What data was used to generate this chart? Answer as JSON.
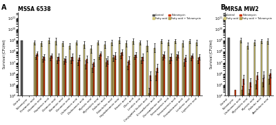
{
  "panel_A_title": "MSSA 6538",
  "panel_B_title": "MRSA MW2",
  "ylabel": "Survival (CFU/ml)",
  "colors": {
    "control": "#555555",
    "tobramycin": "#cc3300",
    "fatty_acid": "#d4c87a",
    "fatty_acid_tobramycin": "#b8a050"
  },
  "panel_A_categories": [
    "Control",
    "Tobramycin",
    "Pentanoic acid",
    "Hexanoic acid",
    "Heptanoic acid",
    "Octanoic acid",
    "Nonanoic acid",
    "Decanoic acid",
    "Undecanoic acid",
    "Dodecanoic acid",
    "Myristic acid",
    "Myristoleic acid",
    "Palmitic acid",
    "Palmitoleic acid",
    "Heptadecanoic acid",
    "Stearic acid",
    "Oleic acid",
    "Linoleic acid",
    "Conjugated linoleic acid",
    "Eicosadienoic acid",
    "Docosadienoic acid",
    "Tetracosanoic acid",
    "Tetracosenoic acid",
    "Pentadecanoic acid",
    "Linolenic acid",
    "Lignoceric acid"
  ],
  "panel_B_categories": [
    "Control",
    "Tobramycin",
    "Undecanoic acid",
    "Myristoleic acid",
    "Myristic acid",
    "Palmitic acid",
    "Arachidonic acid"
  ],
  "panel_A_ctrl_val": [
    9.0,
    3.5,
    null,
    null,
    null,
    null,
    null,
    null,
    null,
    null,
    null,
    null,
    null,
    null,
    null,
    null,
    null,
    null,
    null,
    null,
    null,
    null,
    null,
    null,
    null,
    null
  ],
  "panel_A_fa": [
    null,
    null,
    8.8,
    8.7,
    9.0,
    8.9,
    8.7,
    8.5,
    8.8,
    8.6,
    8.2,
    8.8,
    8.6,
    8.8,
    9.0,
    8.7,
    8.9,
    8.8,
    8.5,
    8.3,
    8.9,
    8.8,
    8.9,
    8.7,
    8.9,
    8.8
  ],
  "panel_A_tob": [
    null,
    null,
    7.8,
    7.5,
    7.6,
    7.5,
    7.3,
    7.5,
    7.4,
    7.3,
    7.0,
    7.8,
    7.2,
    7.6,
    7.9,
    7.2,
    7.7,
    7.5,
    5.8,
    6.5,
    7.7,
    7.5,
    7.7,
    7.4,
    7.6,
    7.5
  ],
  "panel_A_fatob": [
    null,
    null,
    7.5,
    7.3,
    7.4,
    7.2,
    7.1,
    7.2,
    7.0,
    6.8,
    6.5,
    7.5,
    7.0,
    7.4,
    7.6,
    6.7,
    7.5,
    7.2,
    4.2,
    5.8,
    7.5,
    7.2,
    7.5,
    7.0,
    7.4,
    7.2
  ],
  "panel_B_ctrl_val": [
    9.2,
    4.5,
    null,
    null,
    null,
    null,
    null
  ],
  "panel_B_fa": [
    null,
    null,
    9.0,
    8.5,
    8.8,
    8.9,
    8.9
  ],
  "panel_B_tob": [
    null,
    null,
    5.5,
    5.2,
    5.8,
    5.9,
    6.0
  ],
  "panel_B_fatob": [
    null,
    null,
    4.5,
    4.2,
    5.0,
    5.2,
    5.5
  ],
  "panel_A_err_fa": [
    null,
    null,
    0.2,
    0.2,
    0.25,
    0.3,
    0.2,
    0.25,
    0.2,
    0.3,
    0.35,
    0.2,
    0.3,
    0.25,
    0.3,
    0.3,
    0.25,
    0.2,
    0.5,
    0.4,
    0.2,
    0.25,
    0.2,
    0.3,
    0.2,
    0.25
  ],
  "panel_A_err_tob": [
    null,
    null,
    0.2,
    0.25,
    0.2,
    0.3,
    0.25,
    0.3,
    0.25,
    0.3,
    0.3,
    0.2,
    0.35,
    0.3,
    0.25,
    0.35,
    0.2,
    0.3,
    0.4,
    0.35,
    0.25,
    0.3,
    0.25,
    0.3,
    0.2,
    0.25
  ],
  "panel_A_err_fatob": [
    null,
    null,
    0.2,
    0.25,
    0.2,
    0.3,
    0.25,
    0.3,
    0.25,
    0.35,
    0.35,
    0.2,
    0.35,
    0.3,
    0.25,
    0.35,
    0.2,
    0.3,
    0.5,
    0.4,
    0.25,
    0.3,
    0.25,
    0.3,
    0.2,
    0.25
  ],
  "panel_B_err_fa": [
    null,
    null,
    0.2,
    0.3,
    0.25,
    0.2,
    0.25
  ],
  "panel_B_err_tob": [
    null,
    null,
    0.4,
    0.35,
    0.3,
    0.3,
    0.35
  ],
  "panel_B_err_fatob": [
    null,
    null,
    0.4,
    0.35,
    0.35,
    0.35,
    0.4
  ]
}
